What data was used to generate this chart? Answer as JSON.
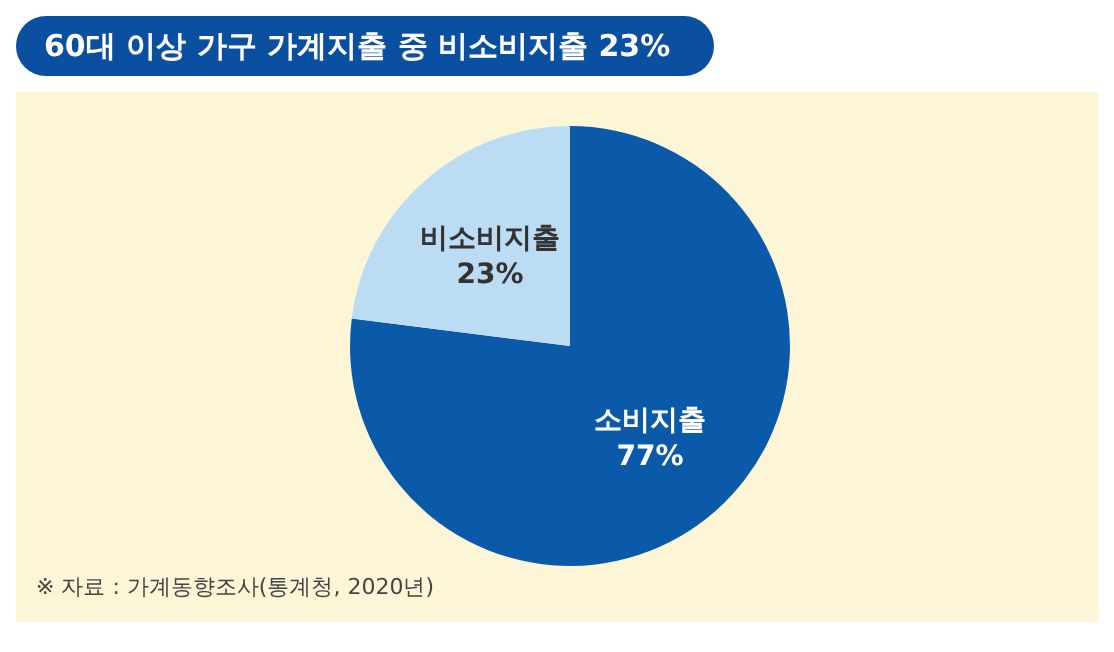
{
  "chart_data": {
    "type": "pie",
    "title": "60대 이상 가구 가계지출 중 비소비지출 23%",
    "categories": [
      "소비지출",
      "비소비지출"
    ],
    "values": [
      77,
      23
    ],
    "value_labels": [
      "77%",
      "23%"
    ],
    "colors": [
      "#0b5aa9",
      "#bcdcf3"
    ],
    "legend": false,
    "annotations": [
      "※ 자료 : 가계동향조사(통계청, 2020년)"
    ]
  }
}
